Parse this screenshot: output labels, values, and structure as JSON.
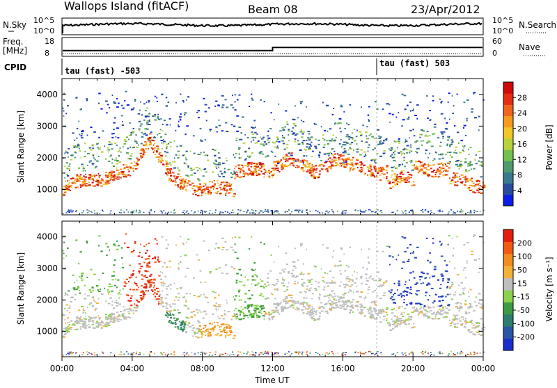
{
  "header": {
    "station": "Wallops Island (fitACF)",
    "beam": "Beam 08",
    "date": "23/Apr/2012"
  },
  "status_panels": {
    "nsky_label": "N.Sky",
    "nsky_ticks": [
      "10^5",
      "10^0"
    ],
    "nsearch_label": "N.Search",
    "nsearch_ticks": [
      "10^5",
      "10^0"
    ],
    "freq_label_1": "Freq.",
    "freq_label_2": "[MHz]",
    "freq_ticks": [
      "18",
      "8"
    ],
    "nave_label": "Nave",
    "nave_ticks": [
      "60",
      "0"
    ],
    "cpid_label": "CPID",
    "cpid_segments": [
      {
        "label": "tau (fast) -503",
        "start_hour": 0.0
      },
      {
        "label": "tau (fast) 503",
        "start_hour": 18.0
      }
    ],
    "freq_step": {
      "before_mhz": 10.5,
      "after_mhz": 12.6,
      "change_hour": 12.0
    }
  },
  "chart_data": [
    {
      "type": "heatmap",
      "name": "Power",
      "ylabel": "Slant Range [km]",
      "yticks": [
        "1000",
        "2000",
        "3000",
        "4000"
      ],
      "ylim": [
        200,
        4500
      ],
      "xlim_hours": [
        0,
        24
      ],
      "colorbar_label": "Power [dB]",
      "colorbar_ticks": [
        "4",
        "8",
        "12",
        "16",
        "20",
        "24",
        "28"
      ],
      "colors": [
        "#0a1ee6",
        "#2a4c9e",
        "#3b7a8e",
        "#4f9a6e",
        "#74c04e",
        "#b7d23c",
        "#f0c628",
        "#f59a1e",
        "#f0641e",
        "#e42d14",
        "#cf0a0a"
      ]
    },
    {
      "type": "heatmap",
      "name": "Velocity",
      "ylabel": "Slant Range [km]",
      "yticks": [
        "1000",
        "2000",
        "3000",
        "4000"
      ],
      "ylim": [
        200,
        4500
      ],
      "xlim_hours": [
        0,
        24
      ],
      "colorbar_label": "Velocity [m s⁻¹]",
      "colorbar_ticks": [
        "200",
        "100",
        "50",
        "15",
        "-15",
        "-50",
        "-100",
        "-200"
      ],
      "colors": [
        "#1a2ccc",
        "#2b55a6",
        "#2d7e6e",
        "#3e9a44",
        "#8cd24c",
        "#bebebe",
        "#f2b23a",
        "#f28c1e",
        "#f25a14",
        "#e21e0c"
      ]
    }
  ],
  "time_axis": {
    "ticks": [
      "00:00",
      "04:00",
      "08:00",
      "12:00",
      "16:00",
      "20:00",
      "00:00"
    ],
    "label": "Time UT"
  }
}
